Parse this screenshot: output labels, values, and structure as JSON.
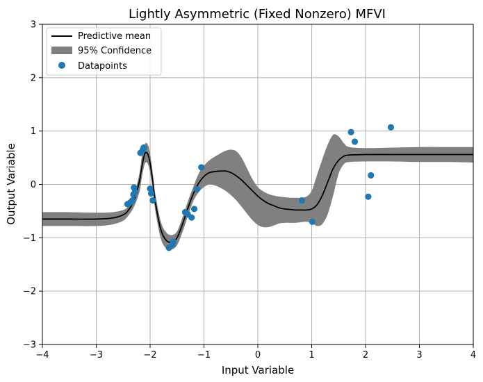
{
  "chart_data": {
    "type": "line",
    "title": "Lightly Asymmetric (Fixed Nonzero) MFVI",
    "xlabel": "Input Variable",
    "ylabel": "Output Variable",
    "xlim": [
      -4,
      4
    ],
    "ylim": [
      -3,
      3
    ],
    "xticks": [
      -4,
      -3,
      -2,
      -1,
      0,
      1,
      2,
      3,
      4
    ],
    "yticks": [
      -3,
      -2,
      -1,
      0,
      1,
      2,
      3
    ],
    "grid": true,
    "legend_position": "top-left",
    "legend": [
      "Predictive mean",
      "95% Confidence",
      "Datapoints"
    ],
    "colors": {
      "mean": "#000000",
      "band": "#808080",
      "points": "#1f77b4",
      "grid": "#b0b0b0"
    },
    "series": [
      {
        "name": "Predictive mean",
        "kind": "line",
        "x": [
          -4.0,
          -3.5,
          -3.0,
          -2.7,
          -2.5,
          -2.4,
          -2.3,
          -2.2,
          -2.15,
          -2.1,
          -2.05,
          -2.0,
          -1.95,
          -1.9,
          -1.8,
          -1.7,
          -1.6,
          -1.5,
          -1.4,
          -1.3,
          -1.2,
          -1.1,
          -1.0,
          -0.9,
          -0.8,
          -0.7,
          -0.6,
          -0.5,
          -0.4,
          -0.3,
          -0.2,
          -0.1,
          0.0,
          0.1,
          0.2,
          0.3,
          0.4,
          0.5,
          0.6,
          0.7,
          0.8,
          0.9,
          1.0,
          1.1,
          1.2,
          1.3,
          1.4,
          1.5,
          1.6,
          1.7,
          2.0,
          2.5,
          3.0,
          3.5,
          4.0
        ],
        "y": [
          -0.65,
          -0.65,
          -0.65,
          -0.63,
          -0.57,
          -0.48,
          -0.3,
          0.05,
          0.35,
          0.57,
          0.58,
          0.4,
          0.05,
          -0.35,
          -0.85,
          -1.05,
          -1.08,
          -1.0,
          -0.75,
          -0.45,
          -0.18,
          0.02,
          0.15,
          0.22,
          0.24,
          0.25,
          0.25,
          0.22,
          0.16,
          0.08,
          -0.02,
          -0.12,
          -0.22,
          -0.3,
          -0.36,
          -0.4,
          -0.44,
          -0.46,
          -0.47,
          -0.48,
          -0.48,
          -0.48,
          -0.46,
          -0.38,
          -0.2,
          0.05,
          0.3,
          0.45,
          0.53,
          0.55,
          0.56,
          0.56,
          0.56,
          0.56,
          0.56
        ]
      },
      {
        "name": "95% Confidence",
        "kind": "band",
        "x": [
          -4.0,
          -3.5,
          -3.0,
          -2.7,
          -2.5,
          -2.4,
          -2.3,
          -2.2,
          -2.15,
          -2.1,
          -2.05,
          -2.0,
          -1.95,
          -1.9,
          -1.8,
          -1.7,
          -1.6,
          -1.5,
          -1.4,
          -1.3,
          -1.2,
          -1.1,
          -1.0,
          -0.9,
          -0.8,
          -0.7,
          -0.6,
          -0.5,
          -0.4,
          -0.3,
          -0.2,
          -0.1,
          0.0,
          0.1,
          0.2,
          0.3,
          0.4,
          0.5,
          0.6,
          0.7,
          0.8,
          0.9,
          1.0,
          1.1,
          1.2,
          1.3,
          1.4,
          1.5,
          1.6,
          1.7,
          2.0,
          2.5,
          3.0,
          3.5,
          4.0
        ],
        "upper": [
          -0.52,
          -0.52,
          -0.53,
          -0.52,
          -0.48,
          -0.4,
          -0.2,
          0.2,
          0.55,
          0.75,
          0.76,
          0.58,
          0.2,
          -0.2,
          -0.7,
          -0.9,
          -0.95,
          -0.88,
          -0.62,
          -0.32,
          -0.05,
          0.2,
          0.35,
          0.45,
          0.52,
          0.58,
          0.63,
          0.65,
          0.62,
          0.5,
          0.3,
          0.1,
          -0.05,
          -0.13,
          -0.18,
          -0.21,
          -0.23,
          -0.24,
          -0.25,
          -0.25,
          -0.25,
          -0.23,
          -0.12,
          0.18,
          0.48,
          0.75,
          0.93,
          0.9,
          0.77,
          0.7,
          0.68,
          0.69,
          0.7,
          0.7,
          0.7
        ],
        "lower": [
          -0.78,
          -0.78,
          -0.78,
          -0.75,
          -0.68,
          -0.58,
          -0.42,
          -0.15,
          0.15,
          0.38,
          0.4,
          0.22,
          -0.12,
          -0.52,
          -1.02,
          -1.2,
          -1.22,
          -1.14,
          -0.9,
          -0.6,
          -0.32,
          -0.15,
          -0.05,
          0.0,
          -0.02,
          -0.06,
          -0.12,
          -0.2,
          -0.3,
          -0.42,
          -0.55,
          -0.67,
          -0.76,
          -0.8,
          -0.8,
          -0.77,
          -0.73,
          -0.72,
          -0.72,
          -0.72,
          -0.71,
          -0.7,
          -0.72,
          -0.78,
          -0.74,
          -0.55,
          -0.2,
          0.2,
          0.38,
          0.42,
          0.43,
          0.43,
          0.42,
          0.42,
          0.41
        ]
      },
      {
        "name": "Datapoints",
        "kind": "scatter",
        "x": [
          -2.42,
          -2.37,
          -2.33,
          -2.31,
          -2.3,
          -2.28,
          -2.18,
          -2.14,
          -2.12,
          -2.0,
          -1.98,
          -1.95,
          -1.65,
          -1.59,
          -1.57,
          -1.35,
          -1.3,
          -1.23,
          -1.18,
          -1.13,
          -1.05,
          0.82,
          1.01,
          1.73,
          1.8,
          2.05,
          2.1,
          2.47
        ],
        "y": [
          -0.37,
          -0.34,
          -0.3,
          -0.19,
          -0.06,
          -0.14,
          0.59,
          0.64,
          0.69,
          -0.08,
          -0.17,
          -0.3,
          -1.19,
          -1.13,
          -1.07,
          -0.52,
          -0.56,
          -0.62,
          -0.46,
          -0.09,
          0.32,
          -0.3,
          -0.7,
          0.98,
          0.8,
          -0.23,
          0.17,
          1.07
        ]
      }
    ]
  }
}
